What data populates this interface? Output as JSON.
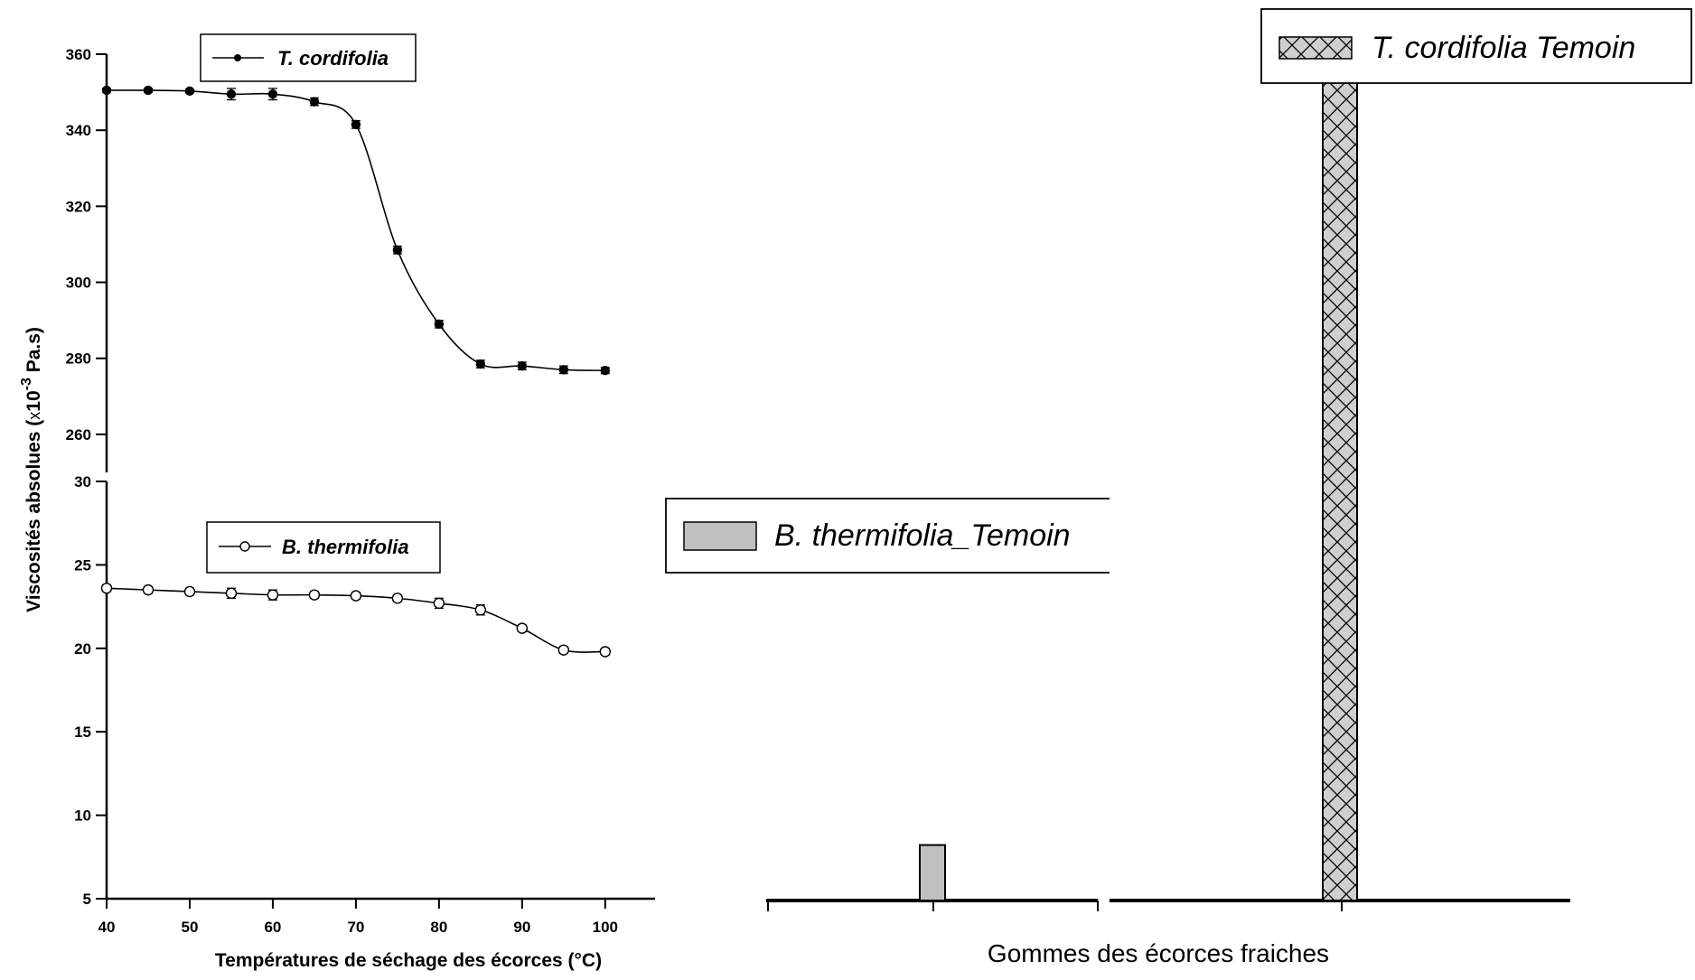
{
  "chart_data": [
    {
      "type": "line",
      "panel": "top",
      "title": "",
      "xlabel": "Températures de séchage des écorces (°C)",
      "ylabel_main": "Viscosités absolues (",
      "ylabel_x": "x",
      "ylabel_pow": "10",
      "ylabel_exp": "-3",
      "ylabel_unit": " Pa.s)",
      "xlim": [
        40,
        106
      ],
      "ylim": [
        250,
        360
      ],
      "x_ticks": [
        40,
        50,
        60,
        70,
        80,
        90,
        100
      ],
      "y_ticks": [
        260,
        280,
        300,
        320,
        340,
        360
      ],
      "legend_position": "top-left",
      "series": [
        {
          "name": "T. cordifolia",
          "marker": "filled-circle",
          "x": [
            40,
            45,
            50,
            55,
            60,
            65,
            70,
            75,
            80,
            85,
            90,
            95,
            100
          ],
          "y": [
            350.5,
            350.5,
            350.3,
            349.5,
            349.5,
            347.5,
            341.5,
            308.5,
            289,
            278.5,
            278,
            277,
            276.8
          ],
          "error": [
            0.5,
            0.5,
            0.5,
            1.5,
            1.5,
            1.0,
            1.0,
            1.0,
            1.0,
            1.0,
            1.0,
            1.0,
            0.8
          ]
        }
      ]
    },
    {
      "type": "line",
      "panel": "bottom",
      "xlim": [
        40,
        106
      ],
      "ylim": [
        5,
        30
      ],
      "x_ticks": [
        40,
        50,
        60,
        70,
        80,
        90,
        100
      ],
      "y_ticks": [
        5,
        10,
        15,
        20,
        25,
        30
      ],
      "legend_position": "top-left",
      "series": [
        {
          "name": "B. thermifolia",
          "marker": "open-circle",
          "x": [
            40,
            45,
            50,
            55,
            60,
            65,
            70,
            75,
            80,
            85,
            90,
            95,
            100
          ],
          "y": [
            23.6,
            23.5,
            23.4,
            23.3,
            23.2,
            23.2,
            23.15,
            23.0,
            22.7,
            22.3,
            21.2,
            19.9,
            19.8
          ],
          "error": [
            0.2,
            0.2,
            0.2,
            0.3,
            0.3,
            0.2,
            0.2,
            0.2,
            0.3,
            0.3,
            0.2,
            0.2,
            0.2
          ]
        }
      ]
    },
    {
      "type": "bar",
      "panel": "right",
      "xlabel": "Gommes des écorces fraiches",
      "ylim": [
        0,
        360
      ],
      "legend_position": "top",
      "series": [
        {
          "name": "B. thermifolia_Temoin",
          "value": 23.6,
          "fill": "#c0c0c0",
          "pattern": "solid"
        },
        {
          "name": "T. cordifolia Temoin",
          "value": 350.5,
          "fill": "#c0c0c0",
          "pattern": "crosshatch"
        }
      ]
    }
  ]
}
